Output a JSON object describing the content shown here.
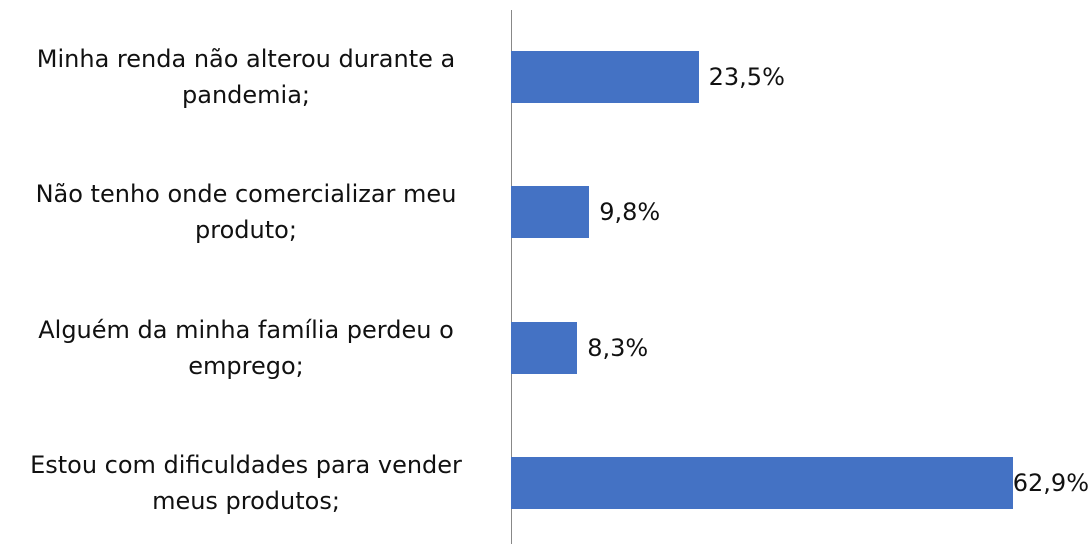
{
  "chart_data": {
    "type": "bar",
    "orientation": "horizontal",
    "categories": [
      "Minha renda não alterou durante a pandemia;",
      "Não tenho onde comercializar meu produto;",
      "Alguém da minha família perdeu o emprego;",
      "Estou com dificuldades para vender meus produtos;"
    ],
    "values": [
      23.5,
      9.8,
      8.3,
      62.9
    ],
    "value_labels": [
      "23,5%",
      "9,8%",
      "8,3%",
      "62,9%"
    ],
    "color": "#4472c4",
    "xlim": [
      0,
      65
    ]
  }
}
